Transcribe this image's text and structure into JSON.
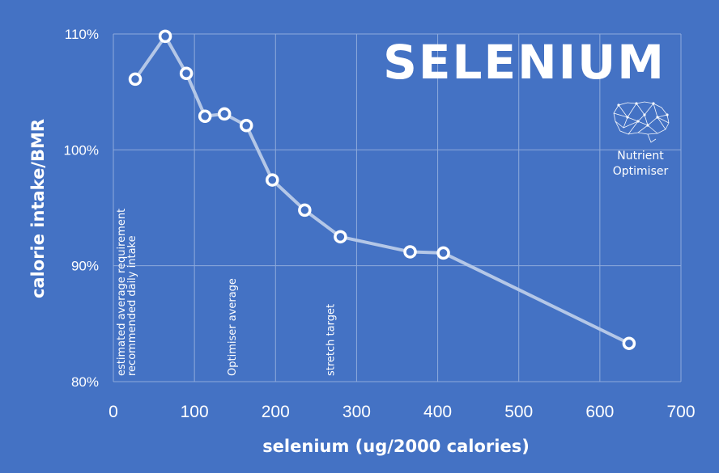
{
  "chart_data": {
    "type": "line",
    "title": "SELENIUM",
    "xlabel": "selenium (ug/2000 calories)",
    "ylabel": "calorie intake/BMR",
    "xlim": [
      0,
      700
    ],
    "ylim": [
      80,
      110
    ],
    "x_ticks": [
      0,
      100,
      200,
      300,
      400,
      500,
      600,
      700
    ],
    "x_tick_labels": [
      "0",
      "100",
      "200",
      "300",
      "400",
      "500",
      "600",
      "700"
    ],
    "y_ticks": [
      80,
      90,
      100,
      110
    ],
    "y_tick_labels": [
      "80%",
      "90%",
      "100%",
      "110%"
    ],
    "grid": true,
    "series": [
      {
        "x": [
          27,
          64,
          90,
          113,
          137,
          164,
          196,
          236,
          280,
          366,
          407,
          636
        ],
        "y": [
          106.1,
          109.8,
          106.6,
          102.9,
          103.1,
          102.1,
          97.4,
          94.8,
          92.5,
          91.2,
          91.1,
          83.3
        ]
      }
    ],
    "annotations": [
      {
        "x": 27,
        "text": "estimated average requirement"
      },
      {
        "x": 40,
        "text": "recommended daily intake"
      },
      {
        "x": 164,
        "text": "Optimiser average"
      },
      {
        "x": 285,
        "text": "stretch target"
      }
    ],
    "colors": {
      "background": "#4472c4",
      "line": "#b4c7e7",
      "marker_fill": "#4472c4",
      "marker_stroke": "#ffffff",
      "grid": "#8eaadb"
    }
  },
  "logo": {
    "line1": "Nutrient",
    "line2": "Optimiser",
    "icon": "brain-icon"
  }
}
